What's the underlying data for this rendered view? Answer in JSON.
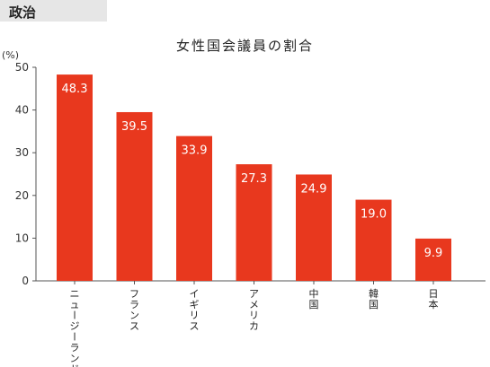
{
  "section_tag": "政治",
  "chart_data": {
    "type": "bar",
    "title": "女性国会議員の割合",
    "unit": "(%)",
    "ylim": [
      0,
      50
    ],
    "yticks": [
      0,
      10,
      20,
      30,
      40,
      50
    ],
    "categories": [
      "ニュージーランド",
      "フランス",
      "イギリス",
      "アメリカ",
      "中国",
      "韓国",
      "日本"
    ],
    "values": [
      48.3,
      39.5,
      33.9,
      27.3,
      24.9,
      19.0,
      9.9
    ],
    "value_labels": [
      "48.3",
      "39.5",
      "33.9",
      "27.3",
      "24.9",
      "19.0",
      "9.9"
    ],
    "bar_color": "#e8381e",
    "grid": false
  }
}
